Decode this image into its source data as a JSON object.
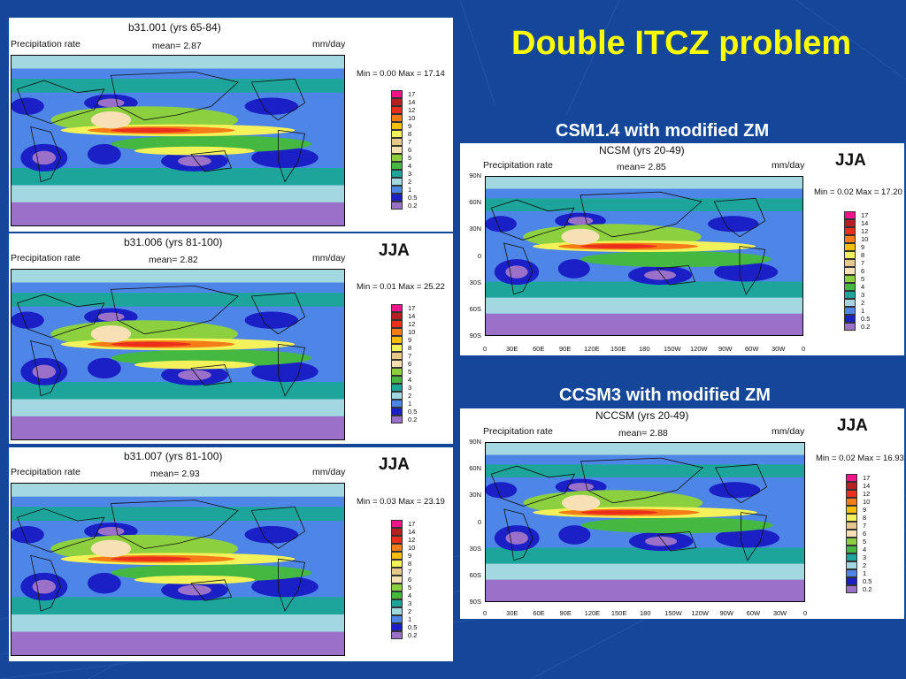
{
  "slide": {
    "title": "Double ITCZ problem",
    "heading_csm": "CSM1.4 with modified ZM",
    "heading_ccsm": "CCSM3 with modified ZM"
  },
  "legend_levels": [
    "17",
    "14",
    "12",
    "10",
    "9",
    "8",
    "7",
    "6",
    "5",
    "4",
    "3",
    "2",
    "1",
    "0.5",
    "0.2"
  ],
  "legend_colors": [
    "#f2138a",
    "#b51f22",
    "#ec2f1c",
    "#f57c16",
    "#f7bf0c",
    "#f4f25a",
    "#e8c78c",
    "#f8e0b6",
    "#8cd040",
    "#45b842",
    "#1da59c",
    "#a4d8e0",
    "#4e86e8",
    "#1a1fc6",
    "#9a70c8"
  ],
  "map_colors": {
    "purple": "#9a70c8",
    "dark_blue": "#1a1fc6",
    "mid_blue": "#4e86e8",
    "light_blue": "#a4d8e0",
    "teal": "#1da59c",
    "green": "#45b842",
    "yellow_green": "#8cd040",
    "tan": "#f8e0b6",
    "yellow": "#f4f25a",
    "orange": "#f57c16",
    "red": "#ec2f1c"
  },
  "lat_labels": [
    "90N",
    "60N",
    "30N",
    "0",
    "30S",
    "60S",
    "90S"
  ],
  "lon_labels": [
    "0",
    "30E",
    "60E",
    "90E",
    "120E",
    "150E",
    "180",
    "150W",
    "120W",
    "90W",
    "60W",
    "30W",
    "0"
  ],
  "panels": [
    {
      "title": "b31.001 (yrs 65-84)",
      "field": "Precipitation rate",
      "mean": "mean=   2.87",
      "unit": "mm/day",
      "minmax": "Min =   0.00 Max =  17.14",
      "season": ""
    },
    {
      "title": "b31.006 (yrs 81-100)",
      "field": "Precipitation rate",
      "mean": "mean=   2.82",
      "unit": "mm/day",
      "minmax": "Min =   0.01 Max =  25.22",
      "season": "JJA"
    },
    {
      "title": "b31.007 (yrs 81-100)",
      "field": "Precipitation rate",
      "mean": "mean=   2.93",
      "unit": "mm/day",
      "minmax": "Min =   0.03 Max =  23.19",
      "season": "JJA"
    },
    {
      "title": "NCSM (yrs 20-49)",
      "field": "Precipitation rate",
      "mean": "mean=   2.85",
      "unit": "mm/day",
      "minmax": "Min =   0.02 Max =  17.20",
      "season": "JJA"
    },
    {
      "title": "NCCSM (yrs 20-49)",
      "field": "Precipitation rate",
      "mean": "mean=   2.88",
      "unit": "mm/day",
      "minmax": "Min =   0.02 Max =  16.93",
      "season": "JJA"
    }
  ]
}
